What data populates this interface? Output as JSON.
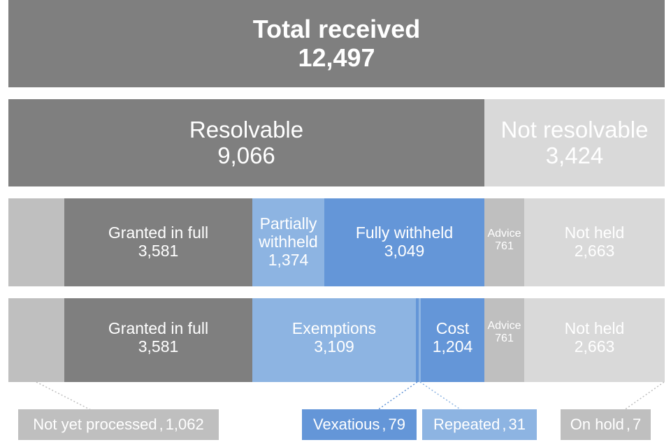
{
  "total": {
    "label": "Total received",
    "value": "12,497"
  },
  "split": {
    "resolvable": {
      "label": "Resolvable",
      "value": "9,066"
    },
    "not_resolvable": {
      "label": "Not resolvable",
      "value": "3,424"
    }
  },
  "outcomes": {
    "granted_full": {
      "label": "Granted in full",
      "value": "3,581"
    },
    "partially_withheld": {
      "label_line1": "Partially",
      "label_line2": "withheld",
      "value": "1,374"
    },
    "fully_withheld": {
      "label": "Fully withheld",
      "value": "3,049"
    },
    "advice": {
      "label": "Advice",
      "value": "761"
    },
    "not_held": {
      "label": "Not held",
      "value": "2,663"
    }
  },
  "reasons": {
    "granted_full": {
      "label": "Granted in full",
      "value": "3,581"
    },
    "exemptions": {
      "label": "Exemptions",
      "value": "3,109"
    },
    "cost": {
      "label": "Cost",
      "value": "1,204"
    },
    "advice": {
      "label": "Advice",
      "value": "761"
    },
    "not_held": {
      "label": "Not held",
      "value": "2,663"
    }
  },
  "callouts": {
    "not_yet_processed": {
      "label": "Not yet processed",
      "value": "1,062"
    },
    "vexatious": {
      "label": "Vexatious",
      "value": "79"
    },
    "repeated": {
      "label": "Repeated",
      "value": "31"
    },
    "on_hold": {
      "label": "On hold",
      "value": "7"
    }
  },
  "colors": {
    "dark_grey": "#7f7f7f",
    "light_grey": "#d9d9d9",
    "mid_grey": "#bfbfbf",
    "light_blue": "#8db4e2",
    "blue": "#6496d8"
  }
}
